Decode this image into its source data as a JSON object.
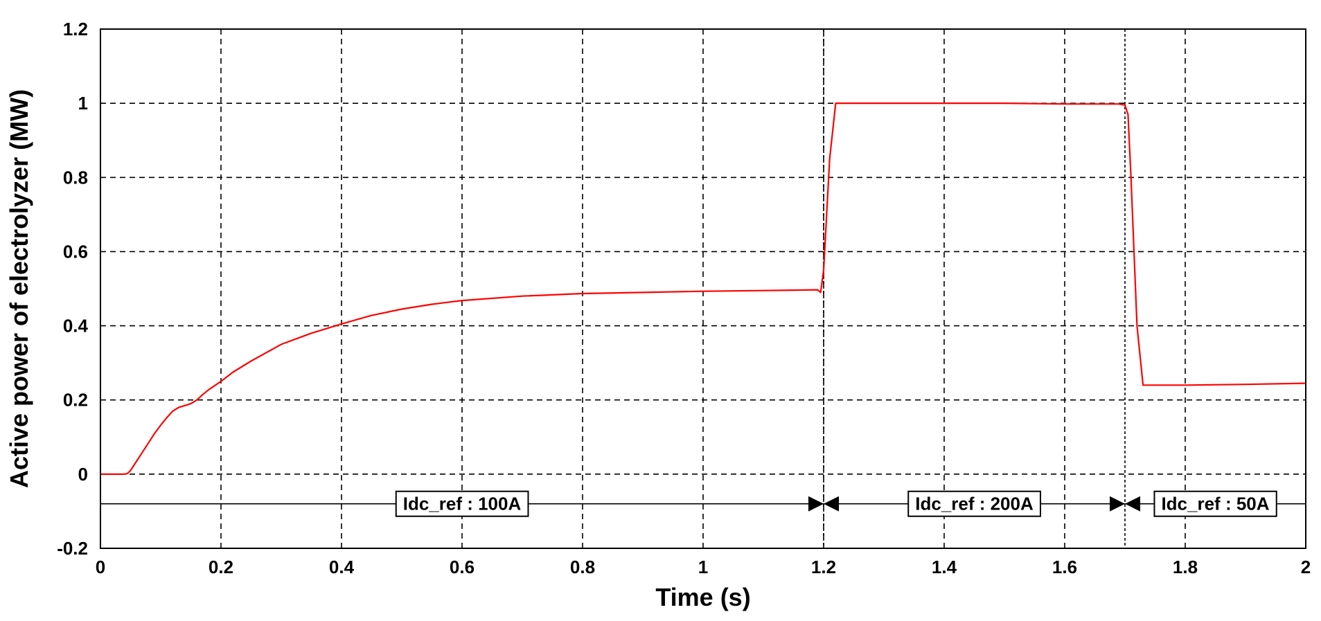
{
  "chart_data": {
    "type": "line",
    "xlabel": "Time (s)",
    "ylabel": "Active power of electrolyzer (MW)",
    "xlim": [
      0,
      2
    ],
    "ylim": [
      -0.2,
      1.2
    ],
    "x_ticks": [
      "0",
      "0.2",
      "0.4",
      "0.6",
      "0.8",
      "1",
      "1.2",
      "1.4",
      "1.6",
      "1.8",
      "2"
    ],
    "y_ticks": [
      "-0.2",
      "0",
      "0.2",
      "0.4",
      "0.6",
      "0.8",
      "1",
      "1.2"
    ],
    "grid": true,
    "series": [
      {
        "color": "#ff0000",
        "x": [
          0,
          0.02,
          0.04,
          0.045,
          0.05,
          0.06,
          0.07,
          0.08,
          0.09,
          0.1,
          0.11,
          0.12,
          0.13,
          0.14,
          0.15,
          0.16,
          0.17,
          0.18,
          0.2,
          0.22,
          0.25,
          0.3,
          0.35,
          0.4,
          0.45,
          0.5,
          0.55,
          0.6,
          0.7,
          0.8,
          0.9,
          1.0,
          1.1,
          1.19,
          1.195,
          1.2,
          1.21,
          1.22,
          1.3,
          1.4,
          1.5,
          1.6,
          1.69,
          1.7,
          1.705,
          1.71,
          1.72,
          1.73,
          1.8,
          1.9,
          2.0
        ],
        "y": [
          0,
          0,
          0,
          0.002,
          0.01,
          0.035,
          0.06,
          0.085,
          0.11,
          0.132,
          0.152,
          0.17,
          0.18,
          0.185,
          0.19,
          0.2,
          0.215,
          0.228,
          0.25,
          0.275,
          0.305,
          0.35,
          0.38,
          0.405,
          0.428,
          0.445,
          0.458,
          0.468,
          0.48,
          0.487,
          0.49,
          0.493,
          0.495,
          0.497,
          0.49,
          0.55,
          0.85,
          1.0,
          1.0,
          1.0,
          1.0,
          0.998,
          0.998,
          0.995,
          0.97,
          0.8,
          0.4,
          0.24,
          0.24,
          0.242,
          0.245
        ]
      }
    ],
    "annotations": [
      {
        "text": "Idc_ref : 100A",
        "x_start": 0,
        "x_end": 1.2
      },
      {
        "text": "Idc_ref : 200A",
        "x_start": 1.2,
        "x_end": 1.7
      },
      {
        "text": "Idc_ref : 50A",
        "x_start": 1.7,
        "x_end": 2.0
      }
    ],
    "annotation_level": -0.08,
    "event_lines": [
      1.2,
      1.7
    ]
  }
}
